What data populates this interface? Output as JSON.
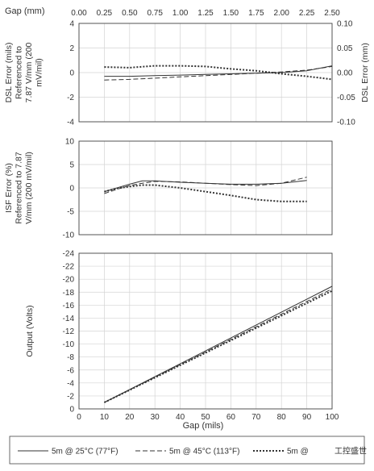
{
  "top_axis": {
    "label": "Gap (mm)",
    "ticks": [
      "0.00",
      "0.25",
      "0.50",
      "0.75",
      "1.00",
      "1.25",
      "1.50",
      "1.75",
      "2.00",
      "2.25",
      "2.50"
    ]
  },
  "bottom_axis": {
    "label": "Gap (mils)",
    "ticks": [
      "0",
      "10",
      "20",
      "30",
      "40",
      "50",
      "60",
      "70",
      "80",
      "90",
      "100"
    ]
  },
  "legend": {
    "items": [
      {
        "label": "5m @ 25°C (77°F)",
        "dash": "solid"
      },
      {
        "label": "5m @ 45°C (113°F)",
        "dash": "dashed"
      },
      {
        "label": "5m @",
        "dash": "dotted"
      }
    ],
    "watermark": "工控盛世"
  },
  "colors": {
    "grid": "#d4d4d4",
    "axis": "#444444",
    "line": "#333333"
  },
  "chart_data": [
    {
      "type": "line",
      "id": "dsl",
      "ylabel_lines": [
        "DSL Error (mils)",
        "Referenced to",
        "7.87 V/mm (200",
        "mV/mil)"
      ],
      "y2label": "DSL Error (mm)",
      "xlim": [
        0,
        100
      ],
      "ylim": [
        -4,
        4
      ],
      "yticks": [
        "4",
        "2",
        "0",
        "-2",
        "-4"
      ],
      "y2ticks": [
        "0.10",
        "0.05",
        "0.00",
        "-0.05",
        "-0.10"
      ],
      "grid": true,
      "series": [
        {
          "name": "5m @ 25°C (77°F)",
          "dash": "solid",
          "x": [
            10,
            20,
            30,
            40,
            50,
            60,
            70,
            80,
            90,
            100
          ],
          "y": [
            -0.3,
            -0.3,
            -0.25,
            -0.2,
            -0.15,
            -0.1,
            -0.05,
            0.0,
            0.15,
            0.55
          ]
        },
        {
          "name": "5m @ 45°C (113°F)",
          "dash": "dashed",
          "x": [
            10,
            20,
            30,
            40,
            50,
            60,
            70,
            80,
            90,
            100
          ],
          "y": [
            -0.6,
            -0.55,
            -0.45,
            -0.35,
            -0.25,
            -0.15,
            -0.05,
            0.05,
            0.2,
            0.5
          ]
        },
        {
          "name": "5m @",
          "dash": "dotted",
          "x": [
            10,
            20,
            30,
            40,
            50,
            60,
            70,
            80,
            90,
            100
          ],
          "y": [
            0.45,
            0.4,
            0.55,
            0.55,
            0.5,
            0.3,
            0.15,
            -0.1,
            -0.3,
            -0.55
          ]
        }
      ]
    },
    {
      "type": "line",
      "id": "isf",
      "ylabel_lines": [
        "ISF Error (%)",
        "Referenced to 7.87",
        "V/mm (200 mV/mil)"
      ],
      "xlim": [
        0,
        100
      ],
      "ylim": [
        -10,
        10
      ],
      "yticks": [
        "10",
        "5",
        "0",
        "-5",
        "-10"
      ],
      "grid": true,
      "series": [
        {
          "name": "5m @ 25°C (77°F)",
          "dash": "solid",
          "x": [
            10,
            15,
            20,
            25,
            30,
            40,
            50,
            60,
            70,
            80,
            90
          ],
          "y": [
            -0.8,
            0.0,
            0.8,
            1.5,
            1.5,
            1.2,
            1.0,
            0.8,
            0.8,
            1.0,
            1.6
          ]
        },
        {
          "name": "5m @ 45°C (113°F)",
          "dash": "dashed",
          "x": [
            10,
            15,
            20,
            25,
            30,
            40,
            50,
            60,
            70,
            80,
            90
          ],
          "y": [
            -1.2,
            -0.3,
            0.5,
            1.0,
            1.4,
            1.3,
            1.0,
            0.7,
            0.5,
            1.0,
            2.3
          ]
        },
        {
          "name": "5m @",
          "dash": "dotted",
          "x": [
            10,
            15,
            20,
            25,
            30,
            40,
            50,
            60,
            70,
            80,
            90
          ],
          "y": [
            -0.8,
            -0.1,
            0.3,
            0.6,
            0.6,
            0.0,
            -0.8,
            -1.6,
            -2.5,
            -2.9,
            -2.9
          ]
        }
      ]
    },
    {
      "type": "line",
      "id": "output",
      "ylabel": "Output (Volts)",
      "xlabel": "Gap (mils)",
      "xlim": [
        0,
        100
      ],
      "ylim": [
        0,
        -24
      ],
      "yticks": [
        "-24",
        "-22",
        "-20",
        "-18",
        "-16",
        "-14",
        "-12",
        "-10",
        "-8",
        "-6",
        "-4",
        "-2",
        "0"
      ],
      "grid": true,
      "series": [
        {
          "name": "5m @ 25°C (77°F)",
          "dash": "solid",
          "x": [
            10,
            100
          ],
          "y": [
            -1.0,
            -18.9
          ]
        },
        {
          "name": "5m @ 45°C (113°F)",
          "dash": "dashed",
          "x": [
            10,
            100
          ],
          "y": [
            -1.0,
            -18.5
          ]
        },
        {
          "name": "5m @",
          "dash": "dotted",
          "x": [
            10,
            100
          ],
          "y": [
            -1.0,
            -18.2
          ]
        }
      ]
    }
  ]
}
